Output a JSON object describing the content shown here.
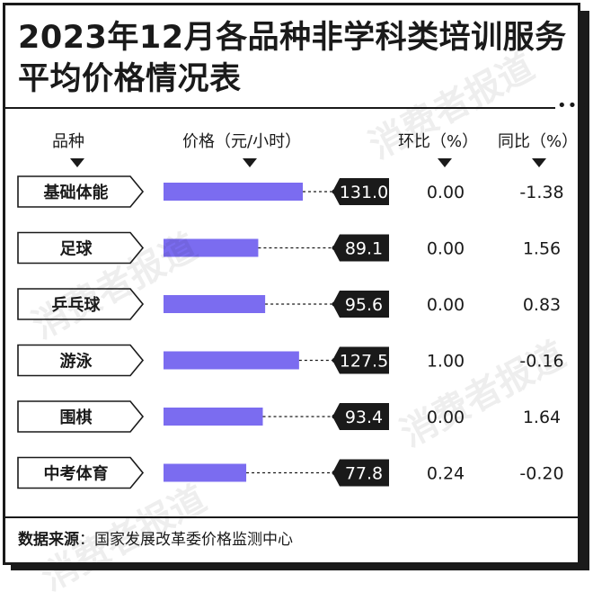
{
  "title_line1": "2023年12月各品种非学科类培训服务",
  "title_line2": "平均价格情况表",
  "watermark": "消费者报道",
  "columns": {
    "category": "品种",
    "price": "价格（元/小时）",
    "mom": "环比（%）",
    "yoy": "同比（%）"
  },
  "footer": {
    "label": "数据来源",
    "separator": "：",
    "text": "国家发展改革委价格监测中心"
  },
  "colors": {
    "bar": "#7b6cf0",
    "dark": "#1a1a1a",
    "white": "#ffffff"
  },
  "chart_data": {
    "type": "table",
    "bar_column": "价格（元/小时）",
    "categories": [
      "基础体能",
      "足球",
      "乒乓球",
      "游泳",
      "围棋",
      "中考体育"
    ],
    "series": [
      {
        "name": "价格（元/小时）",
        "values": [
          "131.0",
          "89.1",
          "95.6",
          "127.5",
          "93.4",
          "77.8"
        ]
      },
      {
        "name": "环比（%）",
        "values": [
          "0.00",
          "0.00",
          "0.00",
          "1.00",
          "0.00",
          "0.24"
        ]
      },
      {
        "name": "同比（%）",
        "values": [
          "-1.38",
          "1.56",
          "0.83",
          "-0.16",
          "1.64",
          "-0.20"
        ]
      }
    ]
  }
}
